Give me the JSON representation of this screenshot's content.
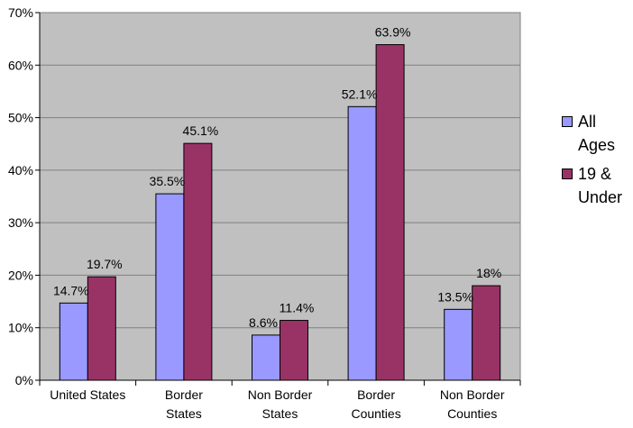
{
  "chart_data": {
    "type": "bar",
    "categories": [
      [
        "United States"
      ],
      [
        "Border",
        "States"
      ],
      [
        "Non Border",
        "States"
      ],
      [
        "Border",
        "Counties"
      ],
      [
        "Non Border",
        "Counties"
      ]
    ],
    "series": [
      {
        "name": "All Ages",
        "values": [
          14.7,
          35.5,
          8.6,
          52.1,
          13.5
        ],
        "labels": [
          "14.7%",
          "35.5%",
          "8.6%",
          "52.1%",
          "13.5%"
        ],
        "color": "#9999ff"
      },
      {
        "name": "19 & Under",
        "values": [
          19.7,
          45.1,
          11.4,
          63.9,
          18
        ],
        "labels": [
          "19.7%",
          "45.1%",
          "11.4%",
          "63.9%",
          "18%"
        ],
        "color": "#993366"
      }
    ],
    "yticks": [
      "0%",
      "10%",
      "20%",
      "30%",
      "40%",
      "50%",
      "60%",
      "70%"
    ],
    "ylim": [
      0,
      70
    ],
    "plot_background": "#c0c0c0",
    "grid": true,
    "legend_position": "right"
  },
  "legend": {
    "items": [
      {
        "lines": [
          "All",
          "Ages"
        ],
        "color": "#9999ff"
      },
      {
        "lines": [
          "19 &",
          "Under"
        ],
        "color": "#993366"
      }
    ]
  }
}
